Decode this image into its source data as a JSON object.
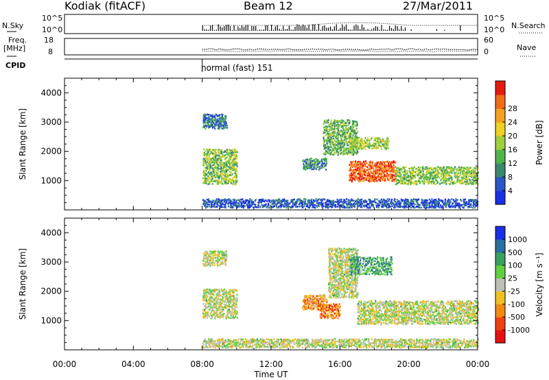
{
  "header": {
    "radar": "Kodiak (fitACF)",
    "beam": "Beam 12",
    "date": "27/Mar/2011"
  },
  "top_panels": {
    "nsky_label": "N.Sky",
    "nsky_ticks": [
      "10^5",
      "10^0"
    ],
    "nsearch_label": "N.Search",
    "nsearch_ticks": [
      "10^5",
      "10^0"
    ],
    "freq_label_1": "Freq.",
    "freq_label_2": "[MHz]",
    "freq_ticks": [
      "18",
      "8"
    ],
    "nave_label": "Nave",
    "nave_ticks": [
      "60",
      "0"
    ],
    "cpid_label": "CPID",
    "cpid_value": "normal (fast) 151"
  },
  "chart_data": [
    {
      "type": "heatmap",
      "title": "",
      "xlabel": "",
      "ylabel": "Slant Range [km]",
      "ylim": [
        0,
        4500
      ],
      "yticks": [
        "1000",
        "2000",
        "3000",
        "4000"
      ],
      "x_range_hours": [
        0,
        24
      ],
      "colorbar": {
        "label": "Power [dB]",
        "ticks": [
          "4",
          "8",
          "12",
          "16",
          "20",
          "24",
          "28"
        ],
        "colors": [
          "#1a2fe6",
          "#2a56c8",
          "#3a8870",
          "#4fb54b",
          "#9fcf3a",
          "#f0d020",
          "#f7a020",
          "#f26a1a",
          "#e81a10"
        ]
      },
      "echo_regions": [
        {
          "t0": 8.0,
          "t1": 10.0,
          "r0": 900,
          "r1": 2100,
          "level": 0.45
        },
        {
          "t0": 8.0,
          "t1": 9.4,
          "r0": 2800,
          "r1": 3300,
          "level": 0.25
        },
        {
          "t0": 13.8,
          "t1": 15.2,
          "r0": 1400,
          "r1": 1800,
          "level": 0.3
        },
        {
          "t0": 15.0,
          "t1": 17.0,
          "r0": 1900,
          "r1": 3100,
          "level": 0.4
        },
        {
          "t0": 16.5,
          "t1": 18.8,
          "r0": 2100,
          "r1": 2500,
          "level": 0.5
        },
        {
          "t0": 16.5,
          "t1": 19.2,
          "r0": 1000,
          "r1": 1700,
          "level": 0.85
        },
        {
          "t0": 19.2,
          "t1": 24.0,
          "r0": 900,
          "r1": 1500,
          "level": 0.45
        },
        {
          "t0": 8.0,
          "t1": 24.0,
          "r0": 100,
          "r1": 400,
          "level": 0.15
        }
      ]
    },
    {
      "type": "heatmap",
      "title": "",
      "xlabel": "Time UT",
      "ylabel": "Slant Range [km]",
      "ylim": [
        0,
        4500
      ],
      "yticks": [
        "1000",
        "2000",
        "3000",
        "4000"
      ],
      "xticks": [
        "00:00",
        "04:00",
        "08:00",
        "12:00",
        "16:00",
        "20:00",
        "00:00"
      ],
      "x_range_hours": [
        0,
        24
      ],
      "colorbar": {
        "label": "Velocity [m s⁻¹]",
        "ticks": [
          "1000",
          "500",
          "100",
          "25",
          "-25",
          "-100",
          "-500",
          "-1000"
        ],
        "colors": [
          "#1a2fe6",
          "#2b6fa0",
          "#3aa060",
          "#60d040",
          "#bfbfb8",
          "#f0c020",
          "#f08a10",
          "#f04010",
          "#e81010"
        ]
      },
      "echo_regions": [
        {
          "t0": 8.0,
          "t1": 10.0,
          "r0": 1100,
          "r1": 2100,
          "level": 0.5
        },
        {
          "t0": 8.0,
          "t1": 9.4,
          "r0": 2900,
          "r1": 3400,
          "level": 0.5
        },
        {
          "t0": 13.8,
          "t1": 15.2,
          "r0": 1400,
          "r1": 1900,
          "level": 0.7
        },
        {
          "t0": 14.8,
          "t1": 16.0,
          "r0": 1100,
          "r1": 1600,
          "level": 0.75
        },
        {
          "t0": 15.3,
          "t1": 17.0,
          "r0": 1800,
          "r1": 3500,
          "level": 0.5
        },
        {
          "t0": 16.5,
          "t1": 19.0,
          "r0": 2600,
          "r1": 3200,
          "level": 0.3
        },
        {
          "t0": 17.0,
          "t1": 24.0,
          "r0": 900,
          "r1": 1700,
          "level": 0.5
        },
        {
          "t0": 8.0,
          "t1": 24.0,
          "r0": 100,
          "r1": 400,
          "level": 0.5
        }
      ]
    }
  ]
}
